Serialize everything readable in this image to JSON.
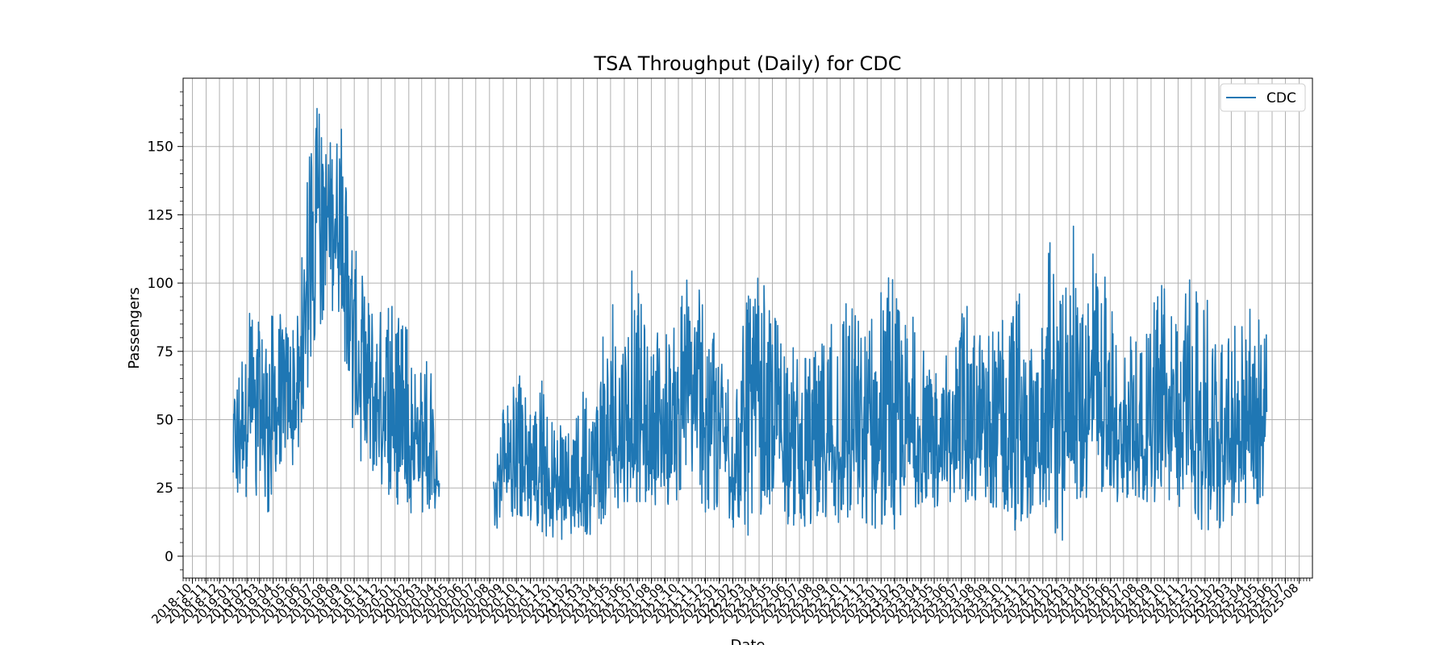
{
  "chart_data": {
    "type": "line",
    "title": "TSA Throughput (Daily) for CDC",
    "xlabel": "Date",
    "ylabel": "Passengers",
    "ylim": [
      -8,
      175
    ],
    "xlim": [
      "2018-09-10",
      "2025-08-31"
    ],
    "grid": true,
    "legend_position": "top-right",
    "y_ticks": [
      0,
      25,
      50,
      75,
      100,
      125,
      150
    ],
    "x_tick_labels": [
      "2018-10",
      "2018-11",
      "2018-12",
      "2019-01",
      "2019-02",
      "2019-03",
      "2019-04",
      "2019-05",
      "2019-06",
      "2019-07",
      "2019-08",
      "2019-09",
      "2019-10",
      "2019-11",
      "2019-12",
      "2020-01",
      "2020-02",
      "2020-03",
      "2020-04",
      "2020-05",
      "2020-06",
      "2020-07",
      "2020-08",
      "2020-09",
      "2020-10",
      "2020-11",
      "2020-12",
      "2021-01",
      "2021-02",
      "2021-03",
      "2021-04",
      "2021-05",
      "2021-06",
      "2021-07",
      "2021-08",
      "2021-09",
      "2021-10",
      "2021-11",
      "2021-12",
      "2022-01",
      "2022-02",
      "2022-03",
      "2022-04",
      "2022-05",
      "2022-06",
      "2022-07",
      "2022-08",
      "2022-09",
      "2022-10",
      "2022-11",
      "2022-12",
      "2023-01",
      "2023-02",
      "2023-03",
      "2023-04",
      "2023-05",
      "2023-06",
      "2023-07",
      "2023-08",
      "2023-09",
      "2023-10",
      "2023-11",
      "2023-12",
      "2024-01",
      "2024-02",
      "2024-03",
      "2024-04",
      "2024-05",
      "2024-06",
      "2024-07",
      "2024-08",
      "2024-09",
      "2024-10",
      "2024-11",
      "2024-12",
      "2025-01",
      "2025-02",
      "2025-03",
      "2025-04",
      "2025-05",
      "2025-06",
      "2025-07",
      "2025-08"
    ],
    "series": [
      {
        "name": "CDC",
        "color": "#1f77b4",
        "segments": [
          {
            "start": "2019-01-01",
            "end": "2020-04-10",
            "anchors": [
              [
                "2019-01-01",
                42,
                20,
                61
              ],
              [
                "2019-02-01",
                50,
                22,
                97
              ],
              [
                "2019-03-01",
                52,
                20,
                88
              ],
              [
                "2019-04-01",
                54,
                13,
                96
              ],
              [
                "2019-05-01",
                55,
                27,
                89
              ],
              [
                "2019-06-01",
                58,
                37,
                100
              ],
              [
                "2019-06-20",
                110,
                63,
                152
              ],
              [
                "2019-07-10",
                125,
                85,
                166
              ],
              [
                "2019-08-01",
                122,
                84,
                158
              ],
              [
                "2019-09-01",
                125,
                88,
                161
              ],
              [
                "2019-09-25",
                90,
                40,
                130
              ],
              [
                "2019-10-15",
                60,
                32,
                107
              ],
              [
                "2019-11-15",
                58,
                30,
                100
              ],
              [
                "2019-12-15",
                55,
                22,
                96
              ],
              [
                "2020-01-15",
                48,
                15,
                89
              ],
              [
                "2020-02-15",
                45,
                16,
                76
              ],
              [
                "2020-03-20",
                38,
                16,
                71
              ],
              [
                "2020-04-10",
                25,
                16,
                30
              ]
            ]
          },
          {
            "start": "2020-08-10",
            "end": "2025-05-20",
            "anchors": [
              [
                "2020-08-10",
                20,
                8,
                29
              ],
              [
                "2020-09-01",
                32,
                14,
                57
              ],
              [
                "2020-10-01",
                35,
                15,
                73
              ],
              [
                "2020-11-01",
                32,
                12,
                63
              ],
              [
                "2020-12-01",
                27,
                8,
                65
              ],
              [
                "2021-01-01",
                25,
                5,
                49
              ],
              [
                "2021-02-01",
                23,
                8,
                45
              ],
              [
                "2021-03-01",
                30,
                8,
                70
              ],
              [
                "2021-04-01",
                33,
                8,
                78
              ],
              [
                "2021-05-01",
                38,
                15,
                92
              ],
              [
                "2021-06-01",
                42,
                20,
                94
              ],
              [
                "2021-06-20",
                45,
                20,
                121
              ],
              [
                "2021-08-01",
                42,
                20,
                82
              ],
              [
                "2021-09-01",
                42,
                16,
                94
              ],
              [
                "2021-10-01",
                50,
                20,
                96
              ],
              [
                "2021-11-01",
                58,
                25,
                106
              ],
              [
                "2021-12-01",
                55,
                15,
                101
              ],
              [
                "2022-01-01",
                45,
                12,
                72
              ],
              [
                "2022-02-01",
                35,
                10,
                68
              ],
              [
                "2022-03-01",
                40,
                6,
                100
              ],
              [
                "2022-04-01",
                50,
                15,
                102
              ],
              [
                "2022-05-01",
                52,
                18,
                96
              ],
              [
                "2022-06-01",
                45,
                12,
                92
              ],
              [
                "2022-07-01",
                40,
                10,
                78
              ],
              [
                "2022-08-01",
                38,
                10,
                82
              ],
              [
                "2022-09-01",
                40,
                15,
                92
              ],
              [
                "2022-10-01",
                42,
                12,
                107
              ],
              [
                "2022-11-01",
                45,
                15,
                102
              ],
              [
                "2022-12-01",
                40,
                12,
                90
              ],
              [
                "2023-01-01",
                35,
                9,
                101
              ],
              [
                "2023-02-01",
                35,
                10,
                111
              ],
              [
                "2023-03-01",
                40,
                15,
                95
              ],
              [
                "2023-04-01",
                40,
                20,
                80
              ],
              [
                "2023-05-01",
                38,
                18,
                82
              ],
              [
                "2023-06-01",
                40,
                20,
                83
              ],
              [
                "2023-07-01",
                40,
                20,
                90
              ],
              [
                "2023-08-01",
                42,
                20,
                94
              ],
              [
                "2023-09-01",
                40,
                18,
                95
              ],
              [
                "2023-10-01",
                42,
                18,
                94
              ],
              [
                "2023-11-01",
                40,
                9,
                107
              ],
              [
                "2023-12-01",
                38,
                15,
                85
              ],
              [
                "2024-01-01",
                40,
                20,
                96
              ],
              [
                "2024-01-20",
                45,
                15,
                125
              ],
              [
                "2024-02-10",
                48,
                0,
                100
              ],
              [
                "2024-03-01",
                50,
                20,
                122
              ],
              [
                "2024-04-01",
                50,
                22,
                121
              ],
              [
                "2024-05-01",
                48,
                20,
                114
              ],
              [
                "2024-06-01",
                45,
                20,
                97
              ],
              [
                "2024-07-01",
                42,
                20,
                80
              ],
              [
                "2024-08-01",
                42,
                20,
                88
              ],
              [
                "2024-09-01",
                45,
                20,
                90
              ],
              [
                "2024-10-01",
                45,
                20,
                104
              ],
              [
                "2024-11-01",
                42,
                18,
                89
              ],
              [
                "2024-12-01",
                45,
                20,
                106
              ],
              [
                "2025-01-01",
                40,
                5,
                100
              ],
              [
                "2025-02-01",
                38,
                9,
                80
              ],
              [
                "2025-03-01",
                45,
                15,
                90
              ],
              [
                "2025-04-01",
                48,
                15,
                89
              ],
              [
                "2025-05-01",
                50,
                15,
                93
              ],
              [
                "2025-05-20",
                50,
                22,
                90
              ]
            ]
          }
        ]
      }
    ]
  }
}
